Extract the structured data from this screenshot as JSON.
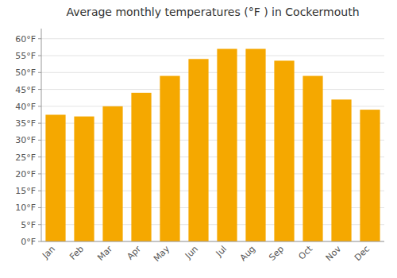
{
  "chart_data": {
    "type": "bar",
    "title": "Average monthly temperatures (°F ) in Cockermouth",
    "categories": [
      "Jan",
      "Feb",
      "Mar",
      "Apr",
      "May",
      "Jun",
      "Jul",
      "Aug",
      "Sep",
      "Oct",
      "Nov",
      "Dec"
    ],
    "values": [
      37.5,
      37.0,
      40.0,
      44.0,
      49.0,
      54.0,
      57.0,
      57.0,
      53.5,
      49.0,
      42.0,
      39.0
    ],
    "color": "#F5A800",
    "ylim": [
      0,
      63
    ],
    "yticks": [
      {
        "value": 0,
        "label": "0°F"
      },
      {
        "value": 5,
        "label": "5°F"
      },
      {
        "value": 10,
        "label": "10°F"
      },
      {
        "value": 15,
        "label": "15°F"
      },
      {
        "value": 20,
        "label": "20°F"
      },
      {
        "value": 25,
        "label": "25°F"
      },
      {
        "value": 30,
        "label": "30°F"
      },
      {
        "value": 35,
        "label": "35°F"
      },
      {
        "value": 40,
        "label": "40°F"
      },
      {
        "value": 45,
        "label": "45°F"
      },
      {
        "value": 50,
        "label": "50°F"
      },
      {
        "value": 55,
        "label": "55°F"
      },
      {
        "value": 60,
        "label": "60°F"
      }
    ],
    "grid": true
  }
}
